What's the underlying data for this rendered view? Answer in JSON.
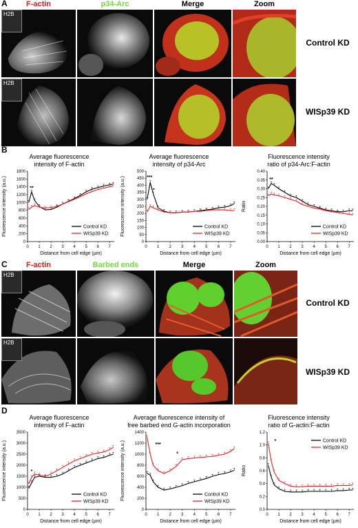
{
  "panelA": {
    "letter": "A",
    "headers": {
      "c1": "F-actin",
      "c2": "p34-Arc",
      "c3": "Merge",
      "c4": "Zoom"
    },
    "header_colors": {
      "c1": "#e21b1b",
      "c2": "#6ddc3a",
      "c3": "#000000",
      "c4": "#000000"
    },
    "inset": "H2B",
    "rows": [
      "Control KD",
      "WISp39 KD"
    ]
  },
  "panelB": {
    "letter": "B"
  },
  "panelC": {
    "letter": "C",
    "headers": {
      "c1": "F-actin",
      "c2": "Barbed ends",
      "c3": "Merge",
      "c4": "Zoom"
    },
    "header_colors": {
      "c1": "#e21b1b",
      "c2": "#6ddc3a",
      "c3": "#000000",
      "c4": "#000000"
    },
    "inset": "H2B",
    "rows": [
      "Control KD",
      "WISp39 KD"
    ]
  },
  "panelD": {
    "letter": "D"
  },
  "colors": {
    "control": "#000000",
    "wisp": "#e32121"
  },
  "chart_data": [
    {
      "id": "B1",
      "type": "line",
      "title": [
        "Average fluorescence",
        "intensity of F-actin"
      ],
      "xlabel": "Distance from cell edge (µm)",
      "ylabel": "Fluorescence intensity (a.u.)",
      "xlim": [
        0,
        7.4
      ],
      "ylim": [
        0,
        1800
      ],
      "xticks": [
        0,
        1,
        2,
        3,
        4,
        5,
        6,
        7
      ],
      "yticks": [
        0,
        200,
        400,
        600,
        800,
        1000,
        1200,
        1400,
        1600,
        1800
      ],
      "x": [
        0.1,
        0.35,
        0.6,
        1,
        1.5,
        2,
        2.5,
        3,
        3.5,
        4,
        4.5,
        5,
        5.5,
        6,
        6.5,
        7,
        7.3
      ],
      "series": [
        {
          "name": "Control KD",
          "values": [
            1000,
            1270,
            1050,
            900,
            810,
            820,
            880,
            960,
            1030,
            1100,
            1180,
            1270,
            1340,
            1380,
            1420,
            1450,
            1470
          ]
        },
        {
          "name": "WISp39 KD",
          "values": [
            820,
            880,
            920,
            880,
            860,
            870,
            900,
            960,
            1020,
            1080,
            1150,
            1220,
            1280,
            1330,
            1370,
            1400,
            1420
          ]
        }
      ],
      "annotations": [
        {
          "text": "**",
          "x": 0.35,
          "y": 1330
        }
      ],
      "legend": "bottom-right"
    },
    {
      "id": "B2",
      "type": "line",
      "title": [
        "Average fluorescence",
        "intensity of p34-Arc"
      ],
      "xlabel": "Distance from cell edge (µm)",
      "ylabel": "Fluorescence intensity (a.u.)",
      "xlim": [
        0,
        7.4
      ],
      "ylim": [
        0,
        500
      ],
      "xticks": [
        0,
        1,
        2,
        3,
        4,
        5,
        6,
        7
      ],
      "yticks": [
        0,
        50,
        100,
        150,
        200,
        250,
        300,
        350,
        400,
        450,
        500
      ],
      "x": [
        0.1,
        0.35,
        0.6,
        1,
        1.5,
        2,
        2.5,
        3,
        3.5,
        4,
        4.5,
        5,
        5.5,
        6,
        6.5,
        7,
        7.3
      ],
      "series": [
        {
          "name": "Control KD",
          "values": [
            300,
            420,
            340,
            240,
            215,
            205,
            205,
            210,
            210,
            215,
            220,
            225,
            230,
            240,
            245,
            255,
            270
          ]
        },
        {
          "name": "WISp39 KD",
          "values": [
            210,
            250,
            240,
            225,
            210,
            205,
            205,
            210,
            210,
            215,
            215,
            220,
            225,
            225,
            225,
            220,
            220
          ]
        }
      ],
      "annotations": [
        {
          "text": "***",
          "x": 0.3,
          "y": 445
        },
        {
          "text": "*",
          "x": 0.65,
          "y": 355
        }
      ],
      "legend": "bottom-right"
    },
    {
      "id": "B3",
      "type": "line",
      "title": [
        "Fluorescence intensity",
        "ratio of p34-Arc:F-actin"
      ],
      "xlabel": "Distance from cell edge (µm)",
      "ylabel": "Ratio",
      "xlim": [
        0,
        7.4
      ],
      "ylim": [
        0,
        0.4
      ],
      "xticks": [
        0,
        1,
        2,
        3,
        4,
        5,
        6,
        7
      ],
      "yticks": [
        0,
        0.05,
        0.1,
        0.15,
        0.2,
        0.25,
        0.3,
        0.35,
        0.4
      ],
      "x": [
        0.1,
        0.35,
        0.6,
        1,
        1.5,
        2,
        2.5,
        3,
        3.5,
        4,
        4.5,
        5,
        5.5,
        6,
        6.5,
        7,
        7.3
      ],
      "series": [
        {
          "name": "Control KD",
          "values": [
            0.3,
            0.33,
            0.32,
            0.3,
            0.28,
            0.26,
            0.25,
            0.23,
            0.21,
            0.2,
            0.19,
            0.18,
            0.175,
            0.17,
            0.17,
            0.175,
            0.175
          ]
        },
        {
          "name": "WISp39 KD",
          "values": [
            0.26,
            0.27,
            0.265,
            0.26,
            0.25,
            0.24,
            0.23,
            0.21,
            0.2,
            0.19,
            0.185,
            0.175,
            0.17,
            0.165,
            0.16,
            0.155,
            0.15
          ]
        }
      ],
      "annotations": [
        {
          "text": "**",
          "x": 0.35,
          "y": 0.345
        }
      ],
      "legend": "bottom-right"
    },
    {
      "id": "D1",
      "type": "line",
      "title": [
        "Average fluorescence",
        "intensity of F-actin"
      ],
      "xlabel": "Distance from cell edge (µm)",
      "ylabel": "Fluorescence intensity (a.u.)",
      "xlim": [
        0,
        7.4
      ],
      "ylim": [
        0,
        3500
      ],
      "xticks": [
        0,
        1,
        2,
        3,
        4,
        5,
        6,
        7
      ],
      "yticks": [
        0,
        500,
        1000,
        1500,
        2000,
        2500,
        3000,
        3500
      ],
      "x": [
        0.1,
        0.35,
        0.6,
        1,
        1.5,
        2,
        2.5,
        3,
        3.5,
        4,
        4.5,
        5,
        5.5,
        6,
        6.5,
        7,
        7.3
      ],
      "series": [
        {
          "name": "Control KD",
          "values": [
            950,
            1200,
            1450,
            1500,
            1450,
            1450,
            1500,
            1600,
            1750,
            1900,
            2000,
            2100,
            2200,
            2300,
            2350,
            2450,
            2500
          ]
        },
        {
          "name": "WISp39 KD",
          "values": [
            1150,
            1450,
            1600,
            1550,
            1500,
            1600,
            1750,
            1900,
            2050,
            2200,
            2300,
            2400,
            2500,
            2550,
            2600,
            2700,
            2800
          ]
        }
      ],
      "annotations": [
        {
          "text": "*",
          "x": 0.35,
          "y": 1650
        }
      ],
      "legend": "bottom-right"
    },
    {
      "id": "D2",
      "type": "line",
      "title": [
        "Average fluorescence intensity of",
        "free barbed end G-actin incorporation"
      ],
      "xlabel": "Distance from cell edge (µm)",
      "ylabel": "Fluorescence intensity (a.u.)",
      "xlim": [
        0,
        7.4
      ],
      "ylim": [
        0,
        1400
      ],
      "xticks": [
        0,
        1,
        2,
        3,
        4,
        5,
        6,
        7
      ],
      "yticks": [
        0,
        200,
        400,
        600,
        800,
        1000,
        1200,
        1400
      ],
      "x": [
        0.1,
        0.35,
        0.6,
        1,
        1.5,
        2,
        2.5,
        3,
        3.5,
        4,
        4.5,
        5,
        5.5,
        6,
        6.5,
        7,
        7.3
      ],
      "series": [
        {
          "name": "Control KD",
          "values": [
            650,
            620,
            500,
            400,
            350,
            370,
            400,
            430,
            470,
            500,
            530,
            560,
            600,
            630,
            650,
            680,
            710
          ]
        },
        {
          "name": "WISp39 KD",
          "values": [
            1300,
            1000,
            800,
            700,
            650,
            700,
            780,
            900,
            920,
            930,
            940,
            950,
            960,
            980,
            1000,
            1050,
            1100
          ]
        }
      ],
      "annotations": [
        {
          "text": "***",
          "x": 1.0,
          "y": 1150
        },
        {
          "text": "*",
          "x": 2.6,
          "y": 980
        }
      ],
      "legend": "bottom-right"
    },
    {
      "id": "D3",
      "type": "line",
      "title": [
        "Fluorescence intensity",
        "ratio of G-actin:F-actin"
      ],
      "xlabel": "Distance from cell edge (µm)",
      "ylabel": "Ratio",
      "xlim": [
        0,
        7.4
      ],
      "ylim": [
        0,
        1.2
      ],
      "xticks": [
        0,
        1,
        2,
        3,
        4,
        5,
        6,
        7
      ],
      "yticks": [
        0,
        0.2,
        0.4,
        0.6,
        0.8,
        1.0,
        1.2
      ],
      "x": [
        0.1,
        0.35,
        0.6,
        1,
        1.5,
        2,
        2.5,
        3,
        3.5,
        4,
        4.5,
        5,
        5.5,
        6,
        6.5,
        7,
        7.3
      ],
      "series": [
        {
          "name": "Control KD",
          "values": [
            0.68,
            0.5,
            0.38,
            0.32,
            0.28,
            0.27,
            0.27,
            0.27,
            0.28,
            0.28,
            0.28,
            0.28,
            0.28,
            0.29,
            0.29,
            0.3,
            0.3
          ]
        },
        {
          "name": "WISp39 KD",
          "values": [
            1.02,
            0.75,
            0.58,
            0.45,
            0.4,
            0.36,
            0.35,
            0.35,
            0.36,
            0.36,
            0.36,
            0.36,
            0.36,
            0.37,
            0.37,
            0.37,
            0.38
          ]
        }
      ],
      "annotations": [
        {
          "text": "*",
          "x": 0.7,
          "y": 1.04
        }
      ],
      "legend": "top-right"
    }
  ]
}
